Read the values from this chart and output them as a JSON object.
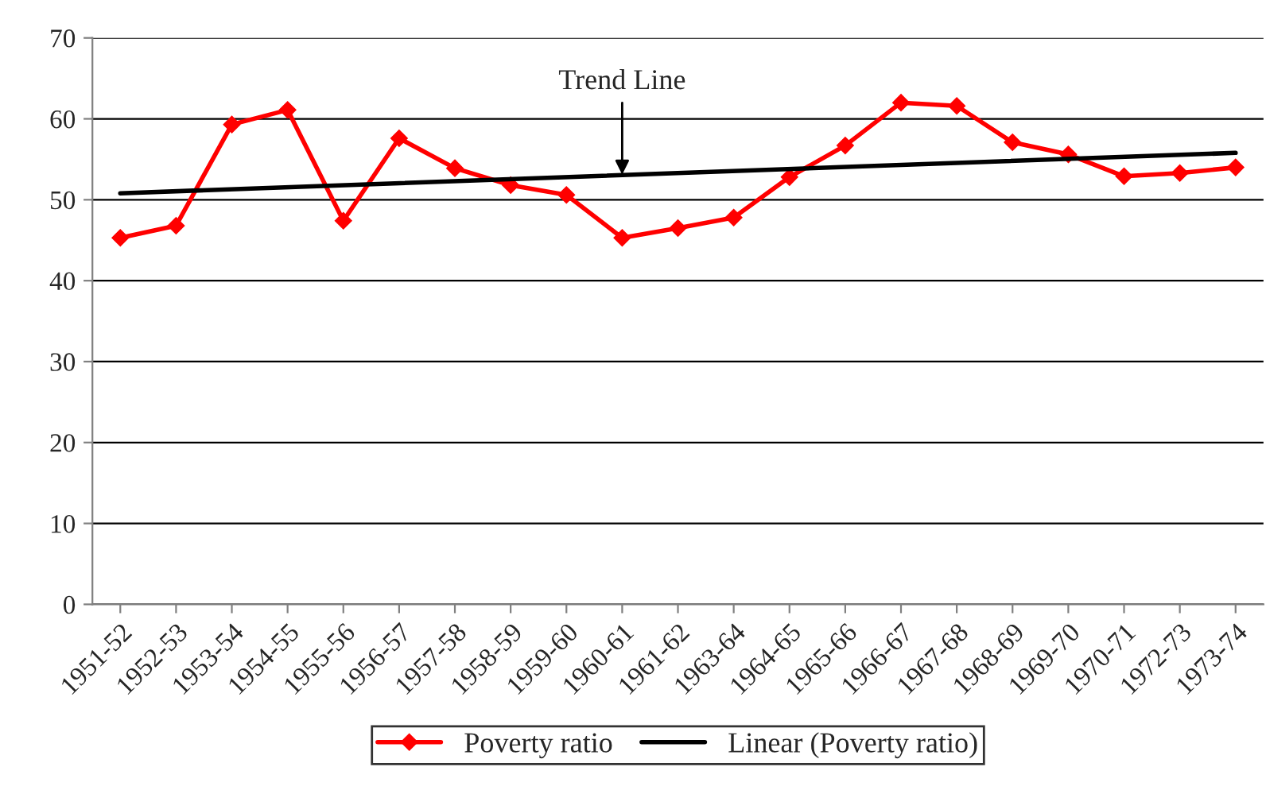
{
  "chart_data": {
    "type": "line",
    "categories": [
      "1951-52",
      "1952-53",
      "1953-54",
      "1954-55",
      "1955-56",
      "1956-57",
      "1957-58",
      "1958-59",
      "1959-60",
      "1960-61",
      "1961-62",
      "1963-64",
      "1964-65",
      "1965-66",
      "1966-67",
      "1967-68",
      "1968-69",
      "1969-70",
      "1970-71",
      "1972-73",
      "1973-74"
    ],
    "series": [
      {
        "name": "Poverty ratio",
        "color": "#ff0000",
        "marker": "diamond",
        "values": [
          45.3,
          46.8,
          59.3,
          61.1,
          47.4,
          57.6,
          53.9,
          51.8,
          50.6,
          45.3,
          46.5,
          47.8,
          52.8,
          56.7,
          62.0,
          61.6,
          57.1,
          55.6,
          52.9,
          53.3,
          54.0
        ]
      },
      {
        "name": "Linear (Poverty ratio)",
        "color": "#000000",
        "marker": "none",
        "x": [
          "1951-52",
          "1973-74"
        ],
        "values": [
          50.8,
          55.8
        ]
      }
    ],
    "ylim": [
      0,
      70
    ],
    "yticks": [
      0,
      10,
      20,
      30,
      40,
      50,
      60,
      70
    ],
    "grid": "y",
    "legend": "bottom",
    "line_style": "solid",
    "annotations": [
      {
        "text": "Trend Line",
        "x": "1960-61",
        "y": 53.1
      }
    ]
  }
}
